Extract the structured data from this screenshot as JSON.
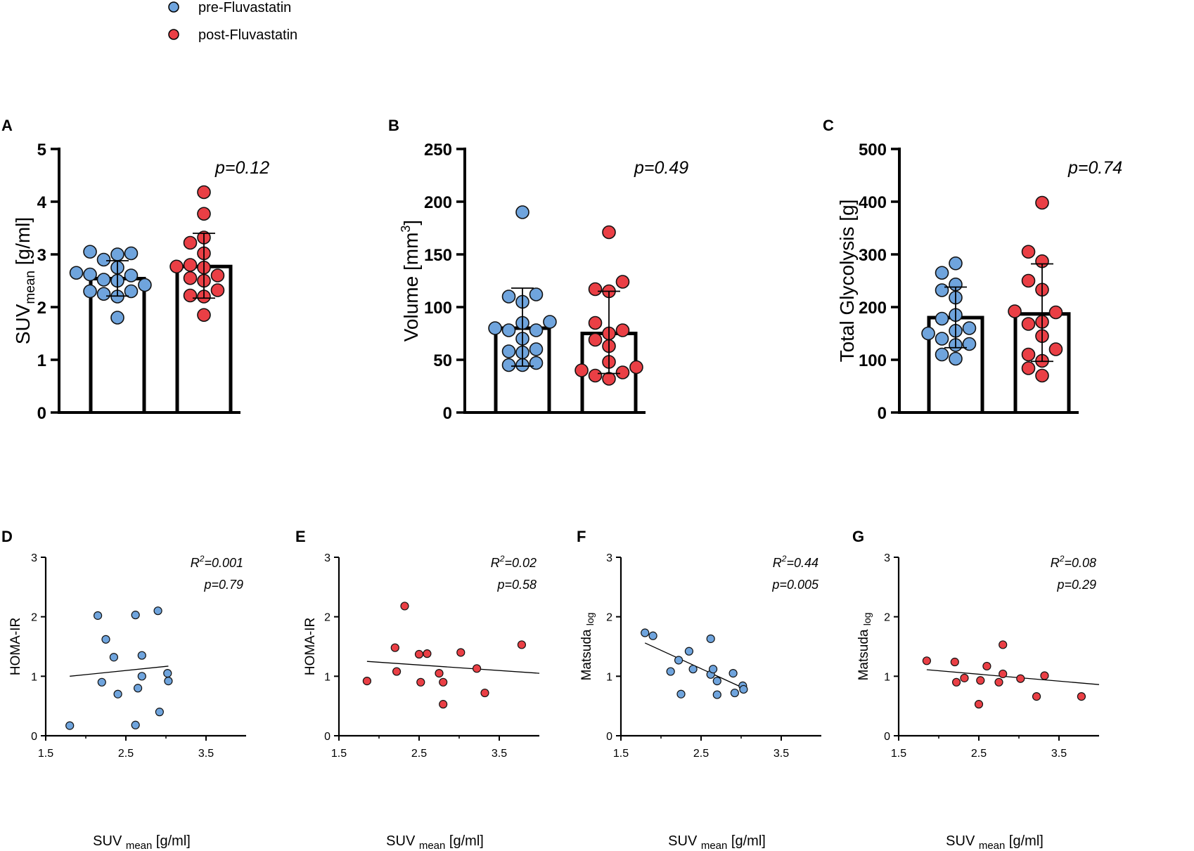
{
  "colors": {
    "pre": "#6fa4dd",
    "post": "#ea3f45",
    "axis": "#000000"
  },
  "legend": {
    "items": [
      {
        "label": "pre-Fluvastatin",
        "color": "#6fa4dd"
      },
      {
        "label": "post-Fluvastatin",
        "color": "#ea3f45"
      }
    ]
  },
  "chart_data": [
    {
      "panel": "A",
      "type": "bar",
      "ylabel_main": "SUV",
      "ylabel_sub": "mean",
      "ylabel_rest": " [g/ml]",
      "ylim": [
        0,
        5
      ],
      "yticks": [
        0,
        1,
        2,
        3,
        4,
        5
      ],
      "ytick_labels": [
        "0",
        "1",
        "2",
        "3",
        "4",
        "5"
      ],
      "annotation": "p=0.12",
      "series": [
        {
          "name": "pre-Fluvastatin",
          "color": "#6fa4dd",
          "mean": 2.54,
          "sd_low": 2.21,
          "sd_high": 2.88,
          "values": [
            1.8,
            2.2,
            2.25,
            2.3,
            2.3,
            2.42,
            2.5,
            2.52,
            2.6,
            2.62,
            2.65,
            2.75,
            2.9,
            3.0,
            3.02,
            3.05
          ]
        },
        {
          "name": "post-Fluvastatin",
          "color": "#ea3f45",
          "mean": 2.77,
          "sd_low": 2.17,
          "sd_high": 3.4,
          "values": [
            1.85,
            2.2,
            2.22,
            2.32,
            2.5,
            2.55,
            2.6,
            2.75,
            2.77,
            2.8,
            3.02,
            3.22,
            3.32,
            3.77,
            4.18
          ]
        }
      ]
    },
    {
      "panel": "B",
      "type": "bar",
      "ylabel_main": "Volume [mm",
      "ylabel_sup": "3",
      "ylabel_rest": "]",
      "ylim": [
        0,
        250
      ],
      "yticks": [
        0,
        50,
        100,
        150,
        200,
        250
      ],
      "ytick_labels": [
        "0",
        "50",
        "100",
        "150",
        "200",
        "250"
      ],
      "annotation": "p=0.49",
      "series": [
        {
          "name": "pre-Fluvastatin",
          "color": "#6fa4dd",
          "mean": 80,
          "sd_low": 44,
          "sd_high": 118,
          "values": [
            45,
            45,
            47,
            57,
            58,
            60,
            70,
            78,
            78,
            80,
            85,
            86,
            105,
            110,
            112,
            190
          ]
        },
        {
          "name": "post-Fluvastatin",
          "color": "#ea3f45",
          "mean": 75,
          "sd_low": 37,
          "sd_high": 115,
          "values": [
            32,
            35,
            38,
            40,
            43,
            48,
            63,
            69,
            75,
            78,
            85,
            115,
            117,
            124,
            171
          ]
        }
      ]
    },
    {
      "panel": "C",
      "type": "bar",
      "ylabel_main": "Total Glycolysis [g]",
      "ylim": [
        0,
        500
      ],
      "yticks": [
        0,
        100,
        200,
        300,
        400,
        500
      ],
      "ytick_labels": [
        "0",
        "100",
        "200",
        "300",
        "400",
        "500"
      ],
      "annotation": "p=0.74",
      "series": [
        {
          "name": "pre-Fluvastatin",
          "color": "#6fa4dd",
          "mean": 180,
          "sd_low": 123,
          "sd_high": 238,
          "values": [
            102,
            110,
            128,
            130,
            140,
            150,
            155,
            160,
            178,
            185,
            218,
            232,
            243,
            265,
            283
          ]
        },
        {
          "name": "post-Fluvastatin",
          "color": "#ea3f45",
          "mean": 187,
          "sd_low": 97,
          "sd_high": 282,
          "values": [
            70,
            84,
            98,
            110,
            120,
            145,
            168,
            172,
            190,
            192,
            233,
            250,
            287,
            305,
            398
          ]
        }
      ]
    },
    {
      "panel": "D",
      "type": "scatter",
      "xlabel_main": "SUV ",
      "xlabel_sub": "mean",
      "xlabel_rest": " [g/ml]",
      "ylabel_main": "HOMA-IR",
      "xlim": [
        1.5,
        4.0
      ],
      "ylim": [
        0,
        3
      ],
      "xticks": [
        1.5,
        2.5,
        3.5
      ],
      "xtick_labels": [
        "1.5",
        "2.5",
        "3.5"
      ],
      "yticks": [
        0,
        1,
        2,
        3
      ],
      "ytick_labels": [
        "0",
        "1",
        "2",
        "3"
      ],
      "r2_label": "R",
      "r2_sup": "2",
      "r2_value": "=0.001",
      "p_label": "p=0.79",
      "color": "#6fa4dd",
      "x": [
        1.8,
        2.15,
        2.2,
        2.25,
        2.35,
        2.4,
        2.62,
        2.62,
        2.65,
        2.7,
        2.7,
        2.9,
        2.92,
        3.02,
        3.03
      ],
      "y": [
        0.17,
        2.02,
        0.9,
        1.62,
        1.32,
        0.7,
        2.03,
        0.18,
        0.8,
        1.35,
        1.0,
        2.1,
        0.4,
        1.05,
        0.92
      ],
      "fit": {
        "x": [
          1.8,
          3.03
        ],
        "y": [
          1.0,
          1.17
        ]
      }
    },
    {
      "panel": "E",
      "type": "scatter",
      "xlabel_main": "SUV ",
      "xlabel_sub": "mean",
      "xlabel_rest": " [g/ml]",
      "ylabel_main": "HOMA-IR",
      "xlim": [
        1.5,
        4.0
      ],
      "ylim": [
        0,
        3
      ],
      "xticks": [
        1.5,
        2.5,
        3.5
      ],
      "xtick_labels": [
        "1.5",
        "2.5",
        "3.5"
      ],
      "yticks": [
        0,
        1,
        2,
        3
      ],
      "ytick_labels": [
        "0",
        "1",
        "2",
        "3"
      ],
      "r2_label": "R",
      "r2_sup": "2",
      "r2_value": "=0.02",
      "p_label": "p=0.58",
      "color": "#ea3f45",
      "x": [
        1.85,
        2.2,
        2.22,
        2.32,
        2.5,
        2.52,
        2.6,
        2.75,
        2.8,
        2.8,
        3.02,
        3.22,
        3.32,
        3.78
      ],
      "y": [
        0.92,
        1.48,
        1.08,
        2.18,
        1.37,
        0.9,
        1.38,
        1.05,
        0.9,
        0.53,
        1.4,
        1.13,
        0.72,
        1.53
      ],
      "fit": {
        "x": [
          1.85,
          4.0
        ],
        "y": [
          1.25,
          1.05
        ]
      }
    },
    {
      "panel": "F",
      "type": "scatter",
      "xlabel_main": "SUV ",
      "xlabel_sub": "mean",
      "xlabel_rest": " [g/ml]",
      "ylabel_main": "Matsuda ",
      "ylabel_sub": "log",
      "xlim": [
        1.5,
        4.0
      ],
      "ylim": [
        0,
        3
      ],
      "xticks": [
        1.5,
        2.5,
        3.5
      ],
      "xtick_labels": [
        "1.5",
        "2.5",
        "3.5"
      ],
      "yticks": [
        0,
        1,
        2,
        3
      ],
      "ytick_labels": [
        "0",
        "1",
        "2",
        "3"
      ],
      "r2_label": "R",
      "r2_sup": "2",
      "r2_value": "=0.44",
      "p_label": "p=0.005",
      "color": "#6fa4dd",
      "x": [
        1.8,
        1.9,
        2.12,
        2.22,
        2.25,
        2.35,
        2.4,
        2.62,
        2.62,
        2.65,
        2.7,
        2.7,
        2.9,
        2.92,
        3.02,
        3.03
      ],
      "y": [
        1.73,
        1.68,
        1.08,
        1.27,
        0.7,
        1.42,
        1.12,
        1.63,
        1.03,
        1.12,
        0.92,
        0.69,
        1.05,
        0.72,
        0.84,
        0.78
      ],
      "fit": {
        "x": [
          1.8,
          3.03
        ],
        "y": [
          1.56,
          0.8
        ]
      }
    },
    {
      "panel": "G",
      "type": "scatter",
      "xlabel_main": "SUV ",
      "xlabel_sub": "mean",
      "xlabel_rest": " [g/ml]",
      "ylabel_main": "Matsuda ",
      "ylabel_sub": "log",
      "xlim": [
        1.5,
        4.0
      ],
      "ylim": [
        0,
        3
      ],
      "xticks": [
        1.5,
        2.5,
        3.5
      ],
      "xtick_labels": [
        "1.5",
        "2.5",
        "3.5"
      ],
      "yticks": [
        0,
        1,
        2,
        3
      ],
      "ytick_labels": [
        "0",
        "1",
        "2",
        "3"
      ],
      "r2_label": "R",
      "r2_sup": "2",
      "r2_value": "=0.08",
      "p_label": "p=0.29",
      "color": "#ea3f45",
      "x": [
        1.85,
        2.2,
        2.22,
        2.32,
        2.5,
        2.52,
        2.6,
        2.75,
        2.8,
        2.8,
        3.02,
        3.22,
        3.32,
        3.78
      ],
      "y": [
        1.26,
        1.24,
        0.9,
        0.97,
        0.53,
        0.93,
        1.17,
        0.9,
        1.04,
        1.53,
        0.96,
        0.66,
        1.01,
        0.66
      ],
      "fit": {
        "x": [
          1.85,
          4.0
        ],
        "y": [
          1.11,
          0.86
        ]
      }
    }
  ]
}
